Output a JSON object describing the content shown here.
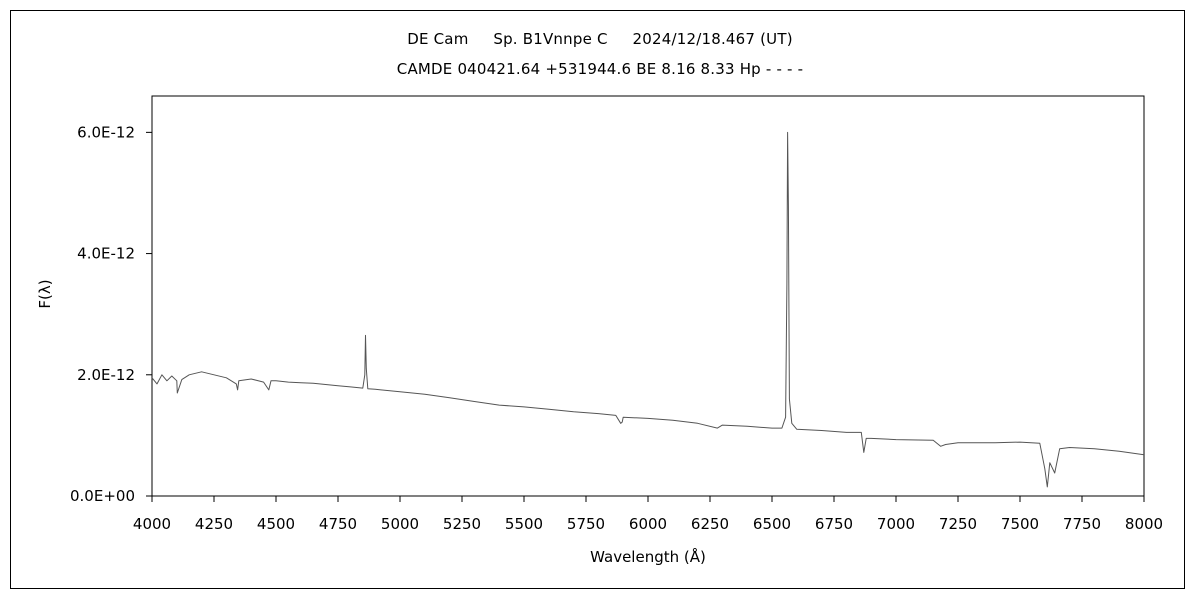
{
  "chart_data": {
    "type": "line",
    "title_parts": [
      "DE Cam",
      "Sp. B1Vnnpe C",
      "2024/12/18.467 (UT)"
    ],
    "subtitle": "CAMDE 040421.64 +531944.6 BE 8.16 8.33 Hp - - - -",
    "xlabel": "Wavelength (Å)",
    "ylabel": "F(λ)",
    "xlim": [
      4000,
      8000
    ],
    "ylim": [
      0,
      6.6e-12
    ],
    "xticks": [
      4000,
      4250,
      4500,
      4750,
      5000,
      5250,
      5500,
      5750,
      6000,
      6250,
      6500,
      6750,
      7000,
      7250,
      7500,
      7750,
      8000
    ],
    "yticks": [
      0,
      2e-12,
      4e-12,
      6e-12
    ],
    "ytick_labels": [
      "0.0E+00",
      "2.0E-12",
      "4.0E-12",
      "6.0E-12"
    ],
    "grid": false,
    "line_color": "#555555",
    "series": [
      {
        "x": [
          4000,
          4020,
          4040,
          4060,
          4080,
          4100,
          4102,
          4120,
          4150,
          4200,
          4250,
          4300,
          4340,
          4345,
          4350,
          4400,
          4450,
          4471,
          4480,
          4500,
          4550,
          4600,
          4650,
          4700,
          4750,
          4800,
          4850,
          4858,
          4861,
          4864,
          4870,
          4900,
          5000,
          5100,
          5200,
          5300,
          5400,
          5500,
          5600,
          5700,
          5800,
          5870,
          5890,
          5896,
          5900,
          6000,
          6100,
          6200,
          6280,
          6300,
          6400,
          6500,
          6540,
          6555,
          6560,
          6563,
          6566,
          6570,
          6580,
          6600,
          6700,
          6800,
          6860,
          6870,
          6880,
          6900,
          7000,
          7150,
          7180,
          7200,
          7250,
          7300,
          7400,
          7500,
          7580,
          7600,
          7610,
          7620,
          7640,
          7660,
          7700,
          7800,
          7900,
          8000
        ],
        "y": [
          1.95e-12,
          1.85e-12,
          2e-12,
          1.9e-12,
          1.98e-12,
          1.9e-12,
          1.7e-12,
          1.92e-12,
          2e-12,
          2.05e-12,
          2e-12,
          1.95e-12,
          1.85e-12,
          1.75e-12,
          1.9e-12,
          1.93e-12,
          1.88e-12,
          1.75e-12,
          1.9e-12,
          1.9e-12,
          1.88e-12,
          1.87e-12,
          1.86e-12,
          1.84e-12,
          1.82e-12,
          1.8e-12,
          1.78e-12,
          2e-12,
          2.65e-12,
          2.1e-12,
          1.77e-12,
          1.76e-12,
          1.72e-12,
          1.68e-12,
          1.62e-12,
          1.56e-12,
          1.5e-12,
          1.47e-12,
          1.43e-12,
          1.39e-12,
          1.36e-12,
          1.33e-12,
          1.2e-12,
          1.22e-12,
          1.3e-12,
          1.28e-12,
          1.25e-12,
          1.2e-12,
          1.12e-12,
          1.17e-12,
          1.15e-12,
          1.12e-12,
          1.12e-12,
          1.3e-12,
          3.5e-12,
          6e-12,
          4.8e-12,
          1.6e-12,
          1.2e-12,
          1.1e-12,
          1.08e-12,
          1.05e-12,
          1.05e-12,
          7.2e-13,
          9.5e-13,
          9.5e-13,
          9.3e-13,
          9.2e-13,
          8.2e-13,
          8.5e-13,
          8.8e-13,
          8.8e-13,
          8.8e-13,
          8.9e-13,
          8.7e-13,
          4.5e-13,
          1.5e-13,
          5.5e-13,
          3.8e-13,
          7.8e-13,
          8e-13,
          7.8e-13,
          7.4e-13,
          6.8e-13
        ]
      }
    ]
  }
}
